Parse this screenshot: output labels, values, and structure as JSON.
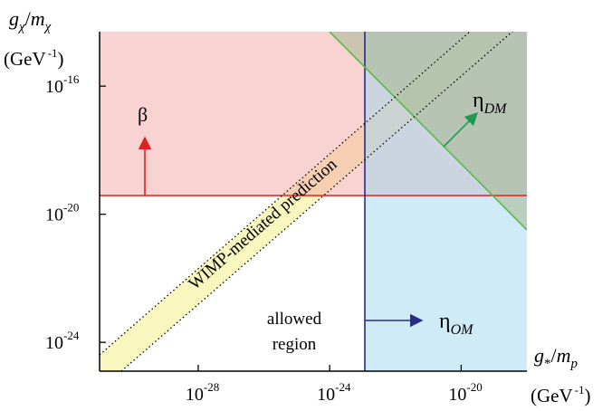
{
  "chart_data": {
    "type": "area",
    "title": "",
    "xlabel": {
      "var": "g",
      "sub": "*",
      "slash": "/",
      "den": "m",
      "den_sub": "p"
    },
    "ylabel": {
      "var": "g",
      "sub": "χ",
      "slash": "/",
      "den": "m",
      "den_sub": "χ"
    },
    "unit_label": {
      "base": "(GeV",
      "exp": "-1",
      "close": ")"
    },
    "xscale": "log",
    "yscale": "log",
    "xlim_exp": [
      -31,
      -18
    ],
    "ylim_exp": [
      -24.9,
      -14.3
    ],
    "xticks": [
      {
        "exp": -28,
        "base": "10",
        "sup": "-28"
      },
      {
        "exp": -24,
        "base": "10",
        "sup": "-24"
      },
      {
        "exp": -20,
        "base": "10",
        "sup": "-20"
      }
    ],
    "yticks": [
      {
        "exp": -16,
        "base": "10",
        "sup": "-16"
      },
      {
        "exp": -20,
        "base": "10",
        "sup": "-20"
      },
      {
        "exp": -24,
        "base": "10",
        "sup": "-24"
      }
    ],
    "regions": {
      "beta": {
        "label": "β",
        "y_lower_exp": -18.9,
        "color": "#f4a6a6"
      },
      "eta_OM": {
        "label": "η",
        "label_sub": "OM",
        "x_lower_exp": -23.3,
        "color": "#9ed8ef"
      },
      "eta_DM": {
        "label": "η",
        "label_sub": "DM",
        "boundary_exp": [
          [
            -23.5,
            -14.3
          ],
          [
            -18,
            -19.9
          ]
        ],
        "color": "#a8d9a8"
      },
      "wimp_band": {
        "label": "WIMP-mediated prediction",
        "lower_exp": [
          [
            -30.6,
            -24.9
          ],
          [
            -20.9,
            -14.3
          ]
        ],
        "upper_exp": [
          [
            -31,
            -24.2
          ],
          [
            -21.7,
            -14.3
          ]
        ],
        "color": "#f7f3a8"
      }
    },
    "lines": {
      "beta_line": {
        "color": "#e02020"
      },
      "eta_OM_line": {
        "color": "#2a2a8c"
      },
      "eta_DM_line": {
        "color": "#5cb84a"
      }
    },
    "annotations": {
      "allowed": [
        "allowed",
        "region"
      ]
    }
  }
}
